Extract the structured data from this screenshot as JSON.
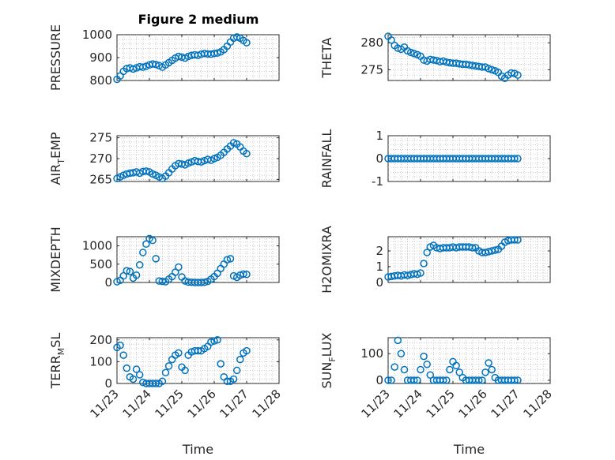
{
  "figure": {
    "title": "Figure 2 medium"
  },
  "colors": {
    "marker": "#0072BD",
    "axis": "#262626",
    "grid": "#b8b8b8"
  },
  "chart_data": [
    {
      "type": "scatter",
      "ylabel": "PRESSURE",
      "title": "Figure 2 medium",
      "xlim": [
        0,
        5
      ],
      "ylim": [
        800,
        1000
      ],
      "yticks": [
        800,
        900,
        1000
      ],
      "xticklabels": [],
      "series": [
        {
          "name": "PRESSURE",
          "x": [
            0,
            0.1,
            0.2,
            0.3,
            0.4,
            0.5,
            0.6,
            0.7,
            0.8,
            0.9,
            1.0,
            1.1,
            1.2,
            1.3,
            1.4,
            1.5,
            1.6,
            1.7,
            1.8,
            1.9,
            2.0,
            2.1,
            2.2,
            2.3,
            2.4,
            2.5,
            2.6,
            2.7,
            2.8,
            2.9,
            3.0,
            3.1,
            3.2,
            3.3,
            3.4,
            3.5,
            3.6,
            3.7,
            3.8,
            3.9,
            4.0
          ],
          "y": [
            805,
            820,
            840,
            852,
            855,
            850,
            855,
            860,
            858,
            862,
            868,
            872,
            870,
            865,
            858,
            868,
            878,
            888,
            898,
            905,
            902,
            898,
            905,
            910,
            912,
            910,
            915,
            918,
            916,
            915,
            918,
            920,
            925,
            935,
            950,
            968,
            985,
            990,
            985,
            975,
            965
          ]
        }
      ]
    },
    {
      "type": "scatter",
      "ylabel": "THETA",
      "xlim": [
        0,
        5
      ],
      "ylim": [
        273,
        281.5
      ],
      "yticks": [
        275,
        280
      ],
      "xticklabels": [],
      "series": [
        {
          "name": "THETA",
          "x": [
            0,
            0.1,
            0.2,
            0.3,
            0.4,
            0.5,
            0.6,
            0.7,
            0.8,
            0.9,
            1.0,
            1.1,
            1.2,
            1.3,
            1.4,
            1.5,
            1.6,
            1.7,
            1.8,
            1.9,
            2.0,
            2.1,
            2.2,
            2.3,
            2.4,
            2.5,
            2.6,
            2.7,
            2.8,
            2.9,
            3.0,
            3.1,
            3.2,
            3.3,
            3.4,
            3.5,
            3.6,
            3.7,
            3.8,
            3.9,
            4.0
          ],
          "y": [
            281.2,
            280.5,
            279.5,
            279.0,
            278.8,
            279.2,
            278.5,
            278.2,
            278.0,
            277.8,
            277.5,
            276.8,
            276.6,
            276.9,
            276.8,
            276.7,
            276.5,
            276.6,
            276.4,
            276.3,
            276.2,
            276.2,
            276.1,
            276.0,
            276.0,
            275.9,
            275.8,
            275.7,
            275.6,
            275.5,
            275.5,
            275.2,
            275.0,
            274.8,
            274.5,
            273.8,
            273.4,
            274.0,
            274.4,
            274.3,
            274.0
          ]
        }
      ]
    },
    {
      "type": "scatter",
      "ylabel": "AIR",
      "ylabel_sub": "T",
      "ylabel_rest": "EMP",
      "xlim": [
        0,
        5
      ],
      "ylim": [
        264.5,
        275.5
      ],
      "yticks": [
        265,
        270,
        275
      ],
      "xticklabels": [],
      "series": [
        {
          "name": "AIR_TEMP",
          "x": [
            0,
            0.1,
            0.2,
            0.3,
            0.4,
            0.5,
            0.6,
            0.7,
            0.8,
            0.9,
            1.0,
            1.1,
            1.2,
            1.3,
            1.4,
            1.5,
            1.6,
            1.7,
            1.8,
            1.9,
            2.0,
            2.1,
            2.2,
            2.3,
            2.4,
            2.5,
            2.6,
            2.7,
            2.8,
            2.9,
            3.0,
            3.1,
            3.2,
            3.3,
            3.4,
            3.5,
            3.6,
            3.7,
            3.8,
            3.9,
            4.0
          ],
          "y": [
            265.2,
            265.6,
            266.0,
            266.3,
            266.5,
            266.6,
            266.8,
            266.5,
            266.9,
            267.0,
            266.8,
            266.3,
            266.0,
            265.6,
            265.2,
            265.8,
            266.6,
            267.5,
            268.3,
            268.8,
            268.7,
            268.5,
            268.9,
            269.2,
            269.5,
            269.3,
            269.2,
            269.5,
            269.8,
            269.6,
            270.0,
            270.3,
            270.8,
            271.5,
            272.3,
            273.0,
            273.8,
            273.5,
            272.8,
            271.8,
            271.2
          ]
        }
      ]
    },
    {
      "type": "scatter",
      "ylabel": "RAINFALL",
      "xlim": [
        0,
        5
      ],
      "ylim": [
        -1,
        1
      ],
      "yticks": [
        -1,
        0,
        1
      ],
      "xticklabels": [],
      "series": [
        {
          "name": "RAINFALL",
          "x": [
            0,
            0.1,
            0.2,
            0.3,
            0.4,
            0.5,
            0.6,
            0.7,
            0.8,
            0.9,
            1.0,
            1.1,
            1.2,
            1.3,
            1.4,
            1.5,
            1.6,
            1.7,
            1.8,
            1.9,
            2.0,
            2.1,
            2.2,
            2.3,
            2.4,
            2.5,
            2.6,
            2.7,
            2.8,
            2.9,
            3.0,
            3.1,
            3.2,
            3.3,
            3.4,
            3.5,
            3.6,
            3.7,
            3.8,
            3.9,
            4.0
          ],
          "y": [
            0,
            0,
            0,
            0,
            0,
            0,
            0,
            0,
            0,
            0,
            0,
            0,
            0,
            0,
            0,
            0,
            0,
            0,
            0,
            0,
            0,
            0,
            0,
            0,
            0,
            0,
            0,
            0,
            0,
            0,
            0,
            0,
            0,
            0,
            0,
            0,
            0,
            0,
            0,
            0,
            0
          ]
        }
      ]
    },
    {
      "type": "scatter",
      "ylabel": "MIXDEPTH",
      "xlim": [
        0,
        5
      ],
      "ylim": [
        0,
        1250
      ],
      "yticks": [
        0,
        500,
        1000
      ],
      "xticklabels": [],
      "series": [
        {
          "name": "MIXDEPTH",
          "x": [
            0,
            0.1,
            0.2,
            0.3,
            0.4,
            0.5,
            0.6,
            0.7,
            0.8,
            0.9,
            1.0,
            1.1,
            1.2,
            1.3,
            1.4,
            1.5,
            1.6,
            1.7,
            1.8,
            1.9,
            2.0,
            2.1,
            2.2,
            2.3,
            2.4,
            2.5,
            2.6,
            2.7,
            2.8,
            2.9,
            3.0,
            3.1,
            3.2,
            3.3,
            3.4,
            3.5,
            3.6,
            3.7,
            3.8,
            3.9,
            4.0
          ],
          "y": [
            20,
            60,
            180,
            320,
            300,
            120,
            200,
            480,
            820,
            1050,
            1200,
            1150,
            650,
            40,
            30,
            20,
            90,
            160,
            280,
            420,
            150,
            40,
            10,
            5,
            0,
            0,
            0,
            5,
            30,
            90,
            160,
            250,
            380,
            500,
            620,
            650,
            180,
            140,
            200,
            230,
            220
          ]
        }
      ]
    },
    {
      "type": "scatter",
      "ylabel": "H2OMIXRA",
      "xlim": [
        0,
        5
      ],
      "ylim": [
        0,
        2.9
      ],
      "yticks": [
        0,
        1,
        2
      ],
      "xticklabels": [],
      "series": [
        {
          "name": "H2OMIXRA",
          "x": [
            0,
            0.1,
            0.2,
            0.3,
            0.4,
            0.5,
            0.6,
            0.7,
            0.8,
            0.9,
            1.0,
            1.1,
            1.2,
            1.3,
            1.4,
            1.5,
            1.6,
            1.7,
            1.8,
            1.9,
            2.0,
            2.1,
            2.2,
            2.3,
            2.4,
            2.5,
            2.6,
            2.7,
            2.8,
            2.9,
            3.0,
            3.1,
            3.2,
            3.3,
            3.4,
            3.5,
            3.6,
            3.7,
            3.8,
            3.9,
            4.0
          ],
          "y": [
            0.35,
            0.38,
            0.42,
            0.45,
            0.42,
            0.48,
            0.45,
            0.5,
            0.55,
            0.52,
            0.6,
            1.2,
            1.9,
            2.25,
            2.35,
            2.2,
            2.15,
            2.2,
            2.2,
            2.2,
            2.25,
            2.2,
            2.25,
            2.25,
            2.25,
            2.25,
            2.2,
            2.2,
            2.0,
            1.9,
            1.9,
            1.95,
            2.0,
            2.05,
            2.1,
            2.3,
            2.55,
            2.65,
            2.7,
            2.7,
            2.7
          ]
        }
      ]
    },
    {
      "type": "scatter",
      "ylabel": "TERR",
      "ylabel_sub": "M",
      "ylabel_rest": "SL",
      "xlim": [
        0,
        5
      ],
      "ylim": [
        0,
        210
      ],
      "yticks": [
        0,
        100,
        200
      ],
      "xticks": [
        0,
        1,
        2,
        3,
        4,
        5
      ],
      "xticklabels": [
        "11/23",
        "11/24",
        "11/25",
        "11/26",
        "11/27",
        "11/28"
      ],
      "xlabel": "Time",
      "series": [
        {
          "name": "TERR_MSL",
          "x": [
            0,
            0.1,
            0.2,
            0.3,
            0.4,
            0.5,
            0.6,
            0.7,
            0.8,
            0.9,
            1.0,
            1.1,
            1.2,
            1.3,
            1.4,
            1.5,
            1.6,
            1.7,
            1.8,
            1.9,
            2.0,
            2.1,
            2.2,
            2.3,
            2.4,
            2.5,
            2.6,
            2.7,
            2.8,
            2.9,
            3.0,
            3.1,
            3.2,
            3.3,
            3.4,
            3.5,
            3.6,
            3.7,
            3.8,
            3.9,
            4.0
          ],
          "y": [
            165,
            175,
            130,
            70,
            30,
            20,
            65,
            40,
            5,
            0,
            0,
            0,
            0,
            0,
            10,
            50,
            80,
            110,
            130,
            140,
            75,
            60,
            130,
            145,
            150,
            150,
            150,
            160,
            170,
            190,
            195,
            200,
            90,
            30,
            10,
            10,
            20,
            60,
            110,
            140,
            150
          ]
        }
      ]
    },
    {
      "type": "scatter",
      "ylabel": "SUN",
      "ylabel_sub": "F",
      "ylabel_rest": "LUX",
      "xlim": [
        0,
        5
      ],
      "ylim": [
        -12,
        160
      ],
      "yticks": [
        0,
        100
      ],
      "xticks": [
        0,
        1,
        2,
        3,
        4,
        5
      ],
      "xticklabels": [
        "11/23",
        "11/24",
        "11/25",
        "11/26",
        "11/27",
        "11/28"
      ],
      "xlabel": "Time",
      "series": [
        {
          "name": "SUN_FLUX",
          "x": [
            0,
            0.1,
            0.2,
            0.3,
            0.4,
            0.5,
            0.6,
            0.7,
            0.8,
            0.9,
            1.0,
            1.1,
            1.2,
            1.3,
            1.4,
            1.5,
            1.6,
            1.7,
            1.8,
            1.9,
            2.0,
            2.1,
            2.2,
            2.3,
            2.4,
            2.5,
            2.6,
            2.7,
            2.8,
            2.9,
            3.0,
            3.1,
            3.2,
            3.3,
            3.4,
            3.5,
            3.6,
            3.7,
            3.8,
            3.9,
            4.0
          ],
          "y": [
            0,
            0,
            50,
            150,
            100,
            40,
            0,
            0,
            0,
            0,
            40,
            90,
            60,
            20,
            0,
            0,
            0,
            0,
            0,
            40,
            70,
            55,
            30,
            10,
            0,
            0,
            0,
            0,
            0,
            0,
            30,
            65,
            40,
            10,
            0,
            0,
            0,
            0,
            0,
            0,
            0
          ]
        }
      ]
    }
  ]
}
